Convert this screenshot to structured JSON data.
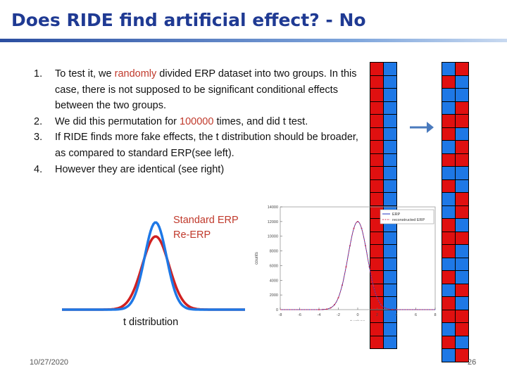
{
  "slide": {
    "title": "Does RIDE find artificial effect? - No",
    "bullets": [
      {
        "num": "1.",
        "pre": "To test it, we ",
        "hl": "randomly",
        "post": " divided ERP dataset into two groups. In this case, there is not supposed to be significant conditional effects between the two groups."
      },
      {
        "num": "2.",
        "pre": "We did this permutation for ",
        "hl": "100000",
        "post": " times, and did t test."
      },
      {
        "num": "3.",
        "pre": "If RIDE finds more fake effects, the t distribution should be broader, as compared to standard ERP(see left).",
        "hl": "",
        "post": ""
      },
      {
        "num": "4.",
        "pre": "However they are identical (see right)",
        "hl": "",
        "post": ""
      }
    ],
    "legend_standard": "Standard ERP",
    "legend_re": "Re-ERP",
    "tdist_label": "t distribution",
    "date": "10/27/2020",
    "page": "26"
  },
  "grids": {
    "left": [
      "RB",
      "RB",
      "RB",
      "RB",
      "RB",
      "RB",
      "RB",
      "RB",
      "RB",
      "RB",
      "RB",
      "RB",
      "RB",
      "RB",
      "RB",
      "RB",
      "RB",
      "RB",
      "RB",
      "RB",
      "RB",
      "RB"
    ],
    "right": [
      "BR",
      "RB",
      "BB",
      "BR",
      "RR",
      "RB",
      "BR",
      "RR",
      "BB",
      "RB",
      "BR",
      "BR",
      "RB",
      "RR",
      "RB",
      "BB",
      "RB",
      "BR",
      "RB",
      "RR",
      "BR",
      "RB",
      "BR"
    ]
  },
  "colors": {
    "red": "#e01010",
    "blue": "#1e78e6",
    "title": "#1f3a93"
  },
  "chart_data": {
    "type": "line",
    "xlabel": "t values",
    "ylabel": "counts",
    "xlim": [
      -8,
      8
    ],
    "ylim": [
      0,
      14000
    ],
    "xticks": [
      "-8",
      "-6",
      "-4",
      "-2",
      "0",
      "2",
      "4",
      "6",
      "8"
    ],
    "yticks": [
      "0",
      "2000",
      "4000",
      "6000",
      "8000",
      "10000",
      "12000",
      "14000"
    ],
    "series": [
      {
        "name": "ERP",
        "peak": 12000,
        "sd": 1.0
      },
      {
        "name": "reconstructed ERP",
        "peak": 12000,
        "sd": 1.0
      }
    ]
  }
}
